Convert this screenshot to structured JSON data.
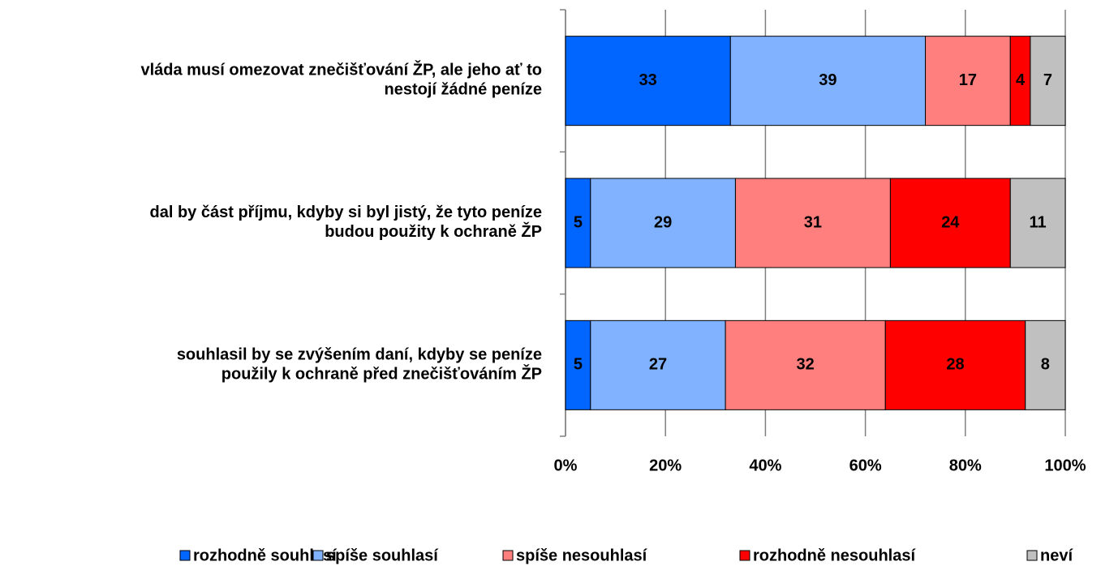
{
  "chart_data": {
    "type": "stacked_barh",
    "categories": [
      [
        "vláda musí omezovat znečišťování ŽP, ale jeho ať to",
        "nestojí žádné peníze"
      ],
      [
        "dal by část příjmu, kdyby si byl jistý, že tyto peníze",
        "budou použity k ochraně ŽP"
      ],
      [
        "souhlasil by se zvýšením daní, kdyby se peníze",
        "použily k ochraně před znečišťováním ŽP"
      ]
    ],
    "series": [
      {
        "name": "rozhodně souhlasí",
        "color": "#0066ff",
        "values": [
          33,
          5,
          5
        ]
      },
      {
        "name": "spíše souhlasí",
        "color": "#80b2ff",
        "values": [
          39,
          29,
          27
        ]
      },
      {
        "name": "spíše nesouhlasí",
        "color": "#ff7f7f",
        "values": [
          17,
          31,
          32
        ]
      },
      {
        "name": "rozhodně nesouhlasí",
        "color": "#ff0000",
        "values": [
          4,
          24,
          28
        ]
      },
      {
        "name": "neví",
        "color": "#c0c0c0",
        "values": [
          7,
          11,
          8
        ]
      }
    ],
    "xlim": [
      0,
      100
    ],
    "xticks": [
      {
        "value": 0,
        "label": "0%"
      },
      {
        "value": 20,
        "label": "20%"
      },
      {
        "value": 40,
        "label": "40%"
      },
      {
        "value": 60,
        "label": "60%"
      },
      {
        "value": 80,
        "label": "80%"
      },
      {
        "value": 100,
        "label": "100%"
      }
    ],
    "grid": true,
    "legend": "bottom"
  }
}
